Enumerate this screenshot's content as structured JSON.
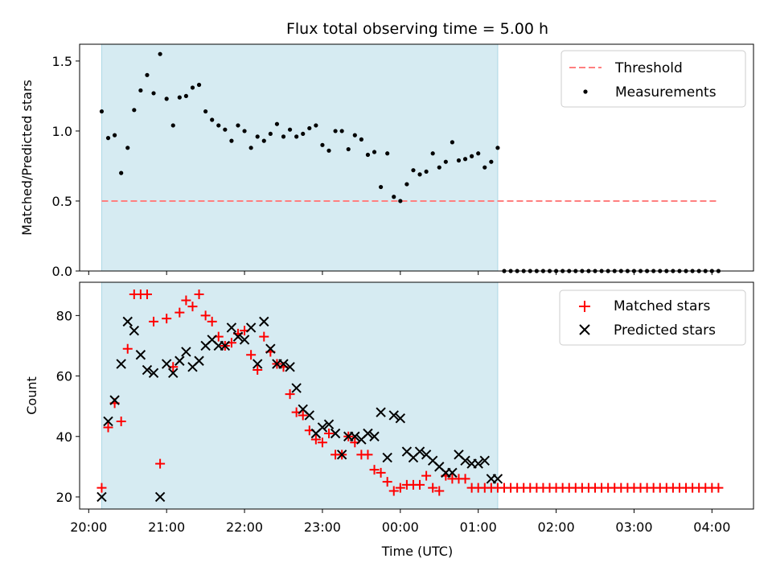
{
  "chart_data": [
    {
      "type": "scatter",
      "title": "Flux total observing time = 5.00 h",
      "xlabel": "",
      "ylabel": "Matched/Predicted stars",
      "ylim": [
        0,
        1.62
      ],
      "yticks": [
        "0.0",
        "0.5",
        "1.0",
        "1.5"
      ],
      "xlim": [
        "19:53",
        "04:32"
      ],
      "shaded_span": {
        "start": "20:10",
        "end": "01:15",
        "color": "#add8e6"
      },
      "grid": false,
      "legend": "top-right",
      "series": [
        {
          "name": "Threshold",
          "kind": "dashed-line",
          "color": "#ff7f7f",
          "x": [
            "20:10",
            "04:05"
          ],
          "y": [
            0.5,
            0.5
          ]
        },
        {
          "name": "Measurements",
          "kind": "points",
          "color": "#000000",
          "x": [
            "20:10",
            "20:15",
            "20:20",
            "20:25",
            "20:30",
            "20:35",
            "20:40",
            "20:45",
            "20:50",
            "20:55",
            "21:00",
            "21:05",
            "21:10",
            "21:15",
            "21:20",
            "21:25",
            "21:30",
            "21:35",
            "21:40",
            "21:45",
            "21:50",
            "21:55",
            "22:00",
            "22:05",
            "22:10",
            "22:15",
            "22:20",
            "22:25",
            "22:30",
            "22:35",
            "22:40",
            "22:45",
            "22:50",
            "22:55",
            "23:00",
            "23:05",
            "23:10",
            "23:15",
            "23:20",
            "23:25",
            "23:30",
            "23:35",
            "23:40",
            "23:45",
            "23:50",
            "23:55",
            "00:00",
            "00:05",
            "00:10",
            "00:15",
            "00:20",
            "00:25",
            "00:30",
            "00:35",
            "00:40",
            "00:45",
            "00:50",
            "00:55",
            "01:00",
            "01:05",
            "01:10",
            "01:15",
            "01:20",
            "01:25",
            "01:30",
            "01:35",
            "01:40",
            "01:45",
            "01:50",
            "01:55",
            "02:00",
            "02:05",
            "02:10",
            "02:15",
            "02:20",
            "02:25",
            "02:30",
            "02:35",
            "02:40",
            "02:45",
            "02:50",
            "02:55",
            "03:00",
            "03:05",
            "03:10",
            "03:15",
            "03:20",
            "03:25",
            "03:30",
            "03:35",
            "03:40",
            "03:45",
            "03:50",
            "03:55",
            "04:00",
            "04:05"
          ],
          "y": [
            1.14,
            0.95,
            0.97,
            0.7,
            0.88,
            1.15,
            1.29,
            1.4,
            1.27,
            1.55,
            1.23,
            1.04,
            1.24,
            1.25,
            1.31,
            1.33,
            1.14,
            1.08,
            1.04,
            1.01,
            0.93,
            1.04,
            1.0,
            0.88,
            0.96,
            0.93,
            0.98,
            1.05,
            0.96,
            1.01,
            0.96,
            0.98,
            1.02,
            1.04,
            0.9,
            0.86,
            1.0,
            1.0,
            0.87,
            0.97,
            0.94,
            0.83,
            0.85,
            0.6,
            0.84,
            0.53,
            0.5,
            0.62,
            0.72,
            0.69,
            0.71,
            0.84,
            0.74,
            0.78,
            0.92,
            0.79,
            0.8,
            0.82,
            0.84,
            0.74,
            0.78,
            0.88,
            0.0,
            0.0,
            0.0,
            0.0,
            0.0,
            0.0,
            0.0,
            0.0,
            0.0,
            0.0,
            0.0,
            0.0,
            0.0,
            0.0,
            0.0,
            0.0,
            0.0,
            0.0,
            0.0,
            0.0,
            0.0,
            0.0,
            0.0,
            0.0,
            0.0,
            0.0,
            0.0,
            0.0,
            0.0,
            0.0,
            0.0,
            0.0,
            0.0,
            0.0
          ]
        }
      ]
    },
    {
      "type": "scatter",
      "title": "",
      "xlabel": "Time (UTC)",
      "ylabel": "Count",
      "ylim": [
        16,
        91
      ],
      "yticks": [
        "20",
        "40",
        "60",
        "80"
      ],
      "xlim": [
        "19:53",
        "04:32"
      ],
      "xticks": [
        "20:00",
        "21:00",
        "22:00",
        "23:00",
        "00:00",
        "01:00",
        "02:00",
        "03:00",
        "04:00"
      ],
      "shaded_span": {
        "start": "20:10",
        "end": "01:15",
        "color": "#add8e6"
      },
      "grid": false,
      "legend": "top-right",
      "series": [
        {
          "name": "Matched stars",
          "kind": "plus",
          "color": "#ff0000",
          "x": [
            "20:10",
            "20:15",
            "20:20",
            "20:25",
            "20:30",
            "20:35",
            "20:40",
            "20:45",
            "20:50",
            "20:55",
            "21:00",
            "21:05",
            "21:10",
            "21:15",
            "21:20",
            "21:25",
            "21:30",
            "21:35",
            "21:40",
            "21:45",
            "21:50",
            "21:55",
            "22:00",
            "22:05",
            "22:10",
            "22:15",
            "22:20",
            "22:25",
            "22:30",
            "22:35",
            "22:40",
            "22:45",
            "22:50",
            "22:55",
            "23:00",
            "23:05",
            "23:10",
            "23:15",
            "23:20",
            "23:25",
            "23:30",
            "23:35",
            "23:40",
            "23:45",
            "23:50",
            "23:55",
            "00:00",
            "00:05",
            "00:10",
            "00:15",
            "00:20",
            "00:25",
            "00:30",
            "00:35",
            "00:40",
            "00:45",
            "00:50",
            "00:55",
            "01:00",
            "01:05",
            "01:10",
            "01:15",
            "01:20",
            "01:25",
            "01:30",
            "01:35",
            "01:40",
            "01:45",
            "01:50",
            "01:55",
            "02:00",
            "02:05",
            "02:10",
            "02:15",
            "02:20",
            "02:25",
            "02:30",
            "02:35",
            "02:40",
            "02:45",
            "02:50",
            "02:55",
            "03:00",
            "03:05",
            "03:10",
            "03:15",
            "03:20",
            "03:25",
            "03:30",
            "03:35",
            "03:40",
            "03:45",
            "03:50",
            "03:55",
            "04:00",
            "04:05"
          ],
          "y": [
            23,
            43,
            51,
            45,
            69,
            87,
            87,
            87,
            78,
            31,
            79,
            63,
            81,
            85,
            83,
            87,
            80,
            78,
            73,
            70,
            71,
            74,
            75,
            67,
            62,
            73,
            68,
            64,
            63,
            54,
            48,
            47,
            42,
            39,
            38,
            41,
            34,
            34,
            40,
            38,
            34,
            34,
            29,
            28,
            25,
            22,
            23,
            24,
            24,
            24,
            27,
            23,
            22,
            27,
            26,
            26,
            26,
            23,
            23,
            23,
            23,
            23,
            23,
            23,
            23,
            23,
            23,
            23,
            23,
            23,
            23,
            23,
            23,
            23,
            23,
            23,
            23,
            23,
            23,
            23,
            23,
            23,
            23,
            23,
            23,
            23,
            23,
            23,
            23,
            23,
            23,
            23,
            23,
            23,
            23,
            23
          ]
        },
        {
          "name": "Predicted stars",
          "kind": "x",
          "color": "#000000",
          "x": [
            "20:10",
            "20:15",
            "20:20",
            "20:25",
            "20:30",
            "20:35",
            "20:40",
            "20:45",
            "20:50",
            "20:55",
            "21:00",
            "21:05",
            "21:10",
            "21:15",
            "21:20",
            "21:25",
            "21:30",
            "21:35",
            "21:40",
            "21:45",
            "21:50",
            "21:55",
            "22:00",
            "22:05",
            "22:10",
            "22:15",
            "22:20",
            "22:25",
            "22:30",
            "22:35",
            "22:40",
            "22:45",
            "22:50",
            "22:55",
            "23:00",
            "23:05",
            "23:10",
            "23:15",
            "23:20",
            "23:25",
            "23:30",
            "23:35",
            "23:40",
            "23:45",
            "23:50",
            "23:55",
            "00:00",
            "00:05",
            "00:10",
            "00:15",
            "00:20",
            "00:25",
            "00:30",
            "00:35",
            "00:40",
            "00:45",
            "00:50",
            "00:55",
            "01:00",
            "01:05",
            "01:10",
            "01:15"
          ],
          "y": [
            20,
            45,
            52,
            64,
            78,
            75,
            67,
            62,
            61,
            20,
            64,
            61,
            65,
            68,
            63,
            65,
            70,
            72,
            70,
            70,
            76,
            73,
            72,
            76,
            64,
            78,
            69,
            64,
            64,
            63,
            56,
            49,
            47,
            41,
            43,
            44,
            41,
            34,
            40,
            40,
            39,
            41,
            40,
            48,
            33,
            47,
            46,
            35,
            33,
            35,
            34,
            32,
            30,
            28,
            28,
            34,
            32,
            31,
            31,
            32,
            26,
            26
          ]
        }
      ]
    }
  ]
}
